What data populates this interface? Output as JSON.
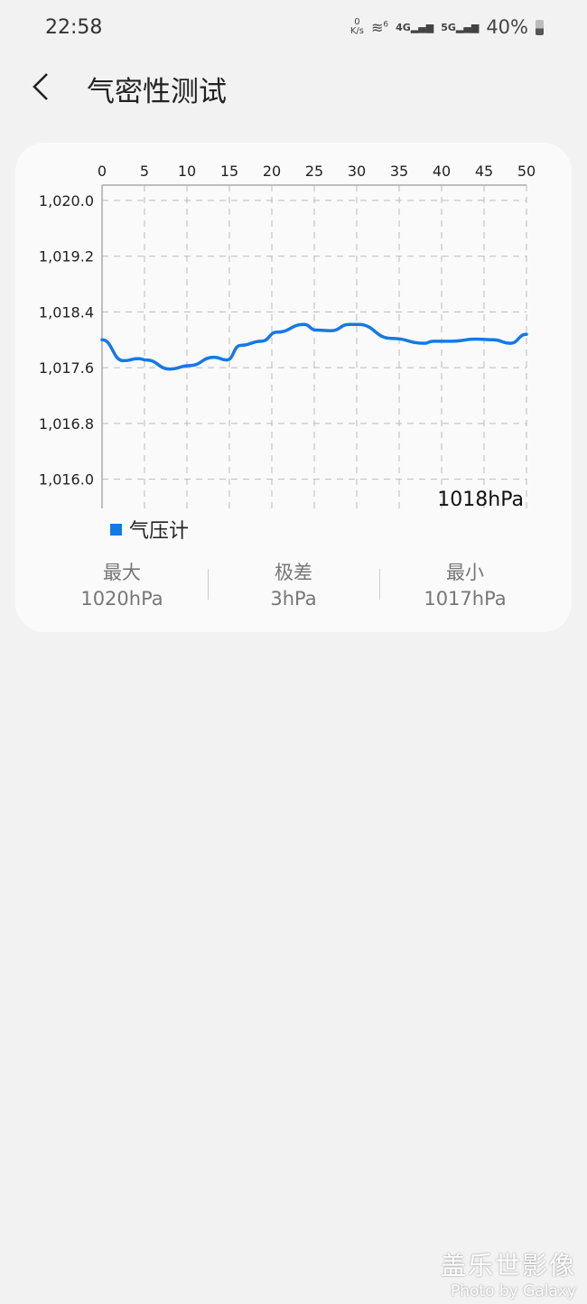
{
  "status_bar": {
    "time": "22:58",
    "net_speed_value": "0",
    "net_speed_unit": "K/s",
    "wifi_badge": "6",
    "sim1": "4G",
    "sim2": "5G",
    "battery": "40%"
  },
  "header": {
    "title": "气密性测试",
    "back_icon": "chevron-left-icon"
  },
  "chart_data": {
    "type": "line",
    "x_ticks": [
      "0",
      "5",
      "10",
      "15",
      "20",
      "25",
      "30",
      "35",
      "40",
      "45",
      "50"
    ],
    "y_ticks": [
      "1,020.0",
      "1,019.2",
      "1,018.4",
      "1,017.6",
      "1,016.8",
      "1,016.0"
    ],
    "xlim": [
      0,
      50
    ],
    "ylim": [
      1015.58,
      1020.22
    ],
    "grid": true,
    "x_axis_position": "top",
    "legend_position": "bottom-left",
    "current_label": "1018hPa",
    "series": [
      {
        "name": "气压计",
        "color": "#1479e6",
        "x": [
          0,
          2.5,
          4.3,
          5.2,
          8,
          10.3,
          13.2,
          14.7,
          16.3,
          18.8,
          20.6,
          23.8,
          25.2,
          27,
          29.1,
          30.2,
          34.1,
          38,
          39,
          41.2,
          44,
          46.1,
          48.1,
          50
        ],
        "y": [
          1018.0,
          1017.7,
          1017.73,
          1017.71,
          1017.58,
          1017.63,
          1017.75,
          1017.71,
          1017.92,
          1017.98,
          1018.11,
          1018.22,
          1018.14,
          1018.13,
          1018.22,
          1018.22,
          1018.02,
          1017.95,
          1017.98,
          1017.98,
          1018.01,
          1018.0,
          1017.95,
          1018.08
        ]
      }
    ]
  },
  "stats": [
    {
      "label": "最大",
      "value": "1020hPa"
    },
    {
      "label": "极差",
      "value": "3hPa"
    },
    {
      "label": "最小",
      "value": "1017hPa"
    }
  ],
  "watermark": {
    "line1": "盖乐世影像",
    "line2": "Photo by Galaxy"
  }
}
